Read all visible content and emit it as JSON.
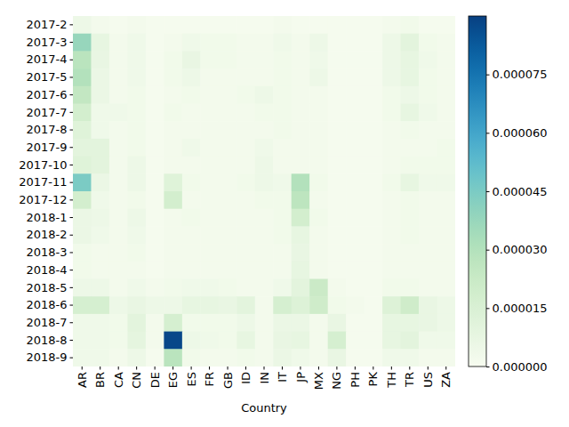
{
  "chart_data": {
    "type": "heatmap",
    "x_label": "Country",
    "x": [
      "AR",
      "BR",
      "CA",
      "CN",
      "DE",
      "EG",
      "ES",
      "FR",
      "GB",
      "ID",
      "IN",
      "IT",
      "JP",
      "MX",
      "NG",
      "PH",
      "PK",
      "TH",
      "TR",
      "US",
      "ZA"
    ],
    "y": [
      "2017-2",
      "2017-3",
      "2017-4",
      "2017-5",
      "2017-6",
      "2017-7",
      "2017-8",
      "2017-9",
      "2017-10",
      "2017-11",
      "2017-12",
      "2018-1",
      "2018-2",
      "2018-3",
      "2018-4",
      "2018-5",
      "2018-6",
      "2018-7",
      "2018-8",
      "2018-9"
    ],
    "color": "GnBu",
    "colorbar_range": [
      0,
      9e-05
    ],
    "colorbar_ticks": [
      {
        "value": 0,
        "label": "0.000000"
      },
      {
        "value": 1.5e-05,
        "label": "0.000015"
      },
      {
        "value": 3e-05,
        "label": "0.000030"
      },
      {
        "value": 4.5e-05,
        "label": "0.000045"
      },
      {
        "value": 6e-05,
        "label": "0.000060"
      },
      {
        "value": 7.5e-05,
        "label": "0.000075"
      }
    ],
    "values": [
      [
        5e-06,
        2e-06,
        1e-06,
        2e-06,
        1e-06,
        1e-06,
        1e-06,
        1e-06,
        1e-06,
        1e-06,
        1e-06,
        2e-06,
        1e-06,
        1e-06,
        1e-06,
        1e-06,
        1e-06,
        2e-06,
        3e-06,
        1e-06,
        1e-06
      ],
      [
        3.8e-05,
        8e-06,
        2e-06,
        4e-06,
        1e-06,
        2e-06,
        4e-06,
        3e-06,
        3e-06,
        2e-06,
        2e-06,
        4e-06,
        2e-06,
        5e-06,
        1e-06,
        1e-06,
        1e-06,
        5e-06,
        1e-05,
        3e-06,
        2e-06
      ],
      [
        2.8e-05,
        7e-06,
        2e-06,
        4e-06,
        1e-06,
        3e-06,
        7e-06,
        3e-06,
        3e-06,
        2e-06,
        2e-06,
        3e-06,
        2e-06,
        4e-06,
        1e-06,
        1e-06,
        1e-06,
        5e-06,
        8e-06,
        4e-06,
        2e-06
      ],
      [
        3e-05,
        6e-06,
        2e-06,
        4e-06,
        1e-06,
        3e-06,
        5e-06,
        2e-06,
        2e-06,
        2e-06,
        2e-06,
        3e-06,
        2e-06,
        5e-06,
        1e-06,
        1e-06,
        1e-06,
        5e-06,
        8e-06,
        3e-06,
        2e-06
      ],
      [
        2.5e-05,
        6e-06,
        2e-06,
        3e-06,
        1e-06,
        2e-06,
        3e-06,
        2e-06,
        2e-06,
        3e-06,
        5e-06,
        3e-06,
        2e-06,
        2e-06,
        1e-06,
        1e-06,
        1e-06,
        3e-06,
        5e-06,
        3e-06,
        2e-06
      ],
      [
        1.8e-05,
        4e-06,
        4e-06,
        3e-06,
        1e-06,
        3e-06,
        2e-06,
        2e-06,
        2e-06,
        2e-06,
        3e-06,
        3e-06,
        2e-06,
        2e-06,
        1e-06,
        1e-06,
        1e-06,
        3e-06,
        8e-06,
        4e-06,
        2e-06
      ],
      [
        1.2e-05,
        4e-06,
        2e-06,
        3e-06,
        1e-06,
        2e-06,
        2e-06,
        2e-06,
        2e-06,
        2e-06,
        2e-06,
        3e-06,
        2e-06,
        2e-06,
        1e-06,
        1e-06,
        1e-06,
        2e-06,
        3e-06,
        2e-06,
        2e-06
      ],
      [
        1e-05,
        1e-05,
        2e-06,
        3e-06,
        1e-06,
        2e-06,
        4e-06,
        2e-06,
        2e-06,
        2e-06,
        4e-06,
        2e-06,
        2e-06,
        2e-06,
        1e-06,
        1e-06,
        1e-06,
        2e-06,
        2e-06,
        2e-06,
        3e-06
      ],
      [
        1.2e-05,
        1e-05,
        2e-06,
        5e-06,
        1e-06,
        2e-06,
        2e-06,
        2e-06,
        2e-06,
        2e-06,
        5e-06,
        2e-06,
        2e-06,
        2e-06,
        1e-06,
        1e-06,
        1e-06,
        2e-06,
        3e-06,
        3e-06,
        3e-06
      ],
      [
        4.5e-05,
        6e-06,
        2e-06,
        5e-06,
        1e-06,
        1.2e-05,
        3e-06,
        2e-06,
        2e-06,
        3e-06,
        5e-06,
        4e-06,
        3e-05,
        3e-06,
        1e-06,
        1e-06,
        1e-06,
        3e-06,
        8e-06,
        4e-06,
        4e-06
      ],
      [
        1.8e-05,
        4e-06,
        2e-06,
        3e-06,
        1e-06,
        1.8e-05,
        2e-06,
        2e-06,
        2e-06,
        2e-06,
        3e-06,
        3e-06,
        2.7e-05,
        2e-06,
        1e-06,
        1e-06,
        1e-06,
        2e-06,
        3e-06,
        2e-06,
        2e-06
      ],
      [
        6e-06,
        5e-06,
        2e-06,
        5e-06,
        1e-06,
        2e-06,
        3e-06,
        2e-06,
        2e-06,
        2e-06,
        2e-06,
        3e-06,
        1.8e-05,
        3e-06,
        1e-06,
        1e-06,
        1e-06,
        2e-06,
        3e-06,
        2e-06,
        2e-06
      ],
      [
        6e-06,
        4e-06,
        2e-06,
        4e-06,
        1e-06,
        2e-06,
        2e-06,
        2e-06,
        2e-06,
        2e-06,
        2e-06,
        3e-06,
        8e-06,
        2e-06,
        1e-06,
        1e-06,
        1e-06,
        2e-06,
        3e-06,
        2e-06,
        2e-06
      ],
      [
        3e-06,
        2e-06,
        2e-06,
        3e-06,
        1e-06,
        2e-06,
        2e-06,
        2e-06,
        2e-06,
        2e-06,
        2e-06,
        2e-06,
        7e-06,
        2e-06,
        1e-06,
        1e-06,
        1e-06,
        2e-06,
        2e-06,
        2e-06,
        2e-06
      ],
      [
        3e-06,
        2e-06,
        2e-06,
        2e-06,
        1e-06,
        2e-06,
        2e-06,
        2e-06,
        2e-06,
        2e-06,
        2e-06,
        2e-06,
        8e-06,
        2e-06,
        1e-06,
        1e-06,
        1e-06,
        2e-06,
        2e-06,
        2e-06,
        2e-06
      ],
      [
        5e-06,
        5e-06,
        2e-06,
        4e-06,
        2e-06,
        3e-06,
        4e-06,
        4e-06,
        3e-06,
        2e-06,
        2e-06,
        4e-06,
        1e-05,
        2.2e-05,
        2e-06,
        1e-06,
        1e-06,
        3e-06,
        3e-06,
        2e-06,
        2e-06
      ],
      [
        1.7e-05,
        1.7e-05,
        5e-06,
        7e-06,
        5e-06,
        5e-06,
        8e-06,
        8e-06,
        7e-06,
        1e-05,
        2e-06,
        1.7e-05,
        1.3e-05,
        2e-05,
        3e-06,
        2e-06,
        1e-06,
        1.3e-05,
        2e-05,
        7e-06,
        5e-06
      ],
      [
        4e-06,
        4e-06,
        3e-06,
        1e-05,
        2e-06,
        1.7e-05,
        3e-06,
        3e-06,
        3e-06,
        5e-06,
        2e-06,
        6e-06,
        6e-06,
        2e-06,
        7e-06,
        1e-06,
        1e-06,
        8e-06,
        8e-06,
        7e-06,
        5e-06
      ],
      [
        4e-06,
        4e-06,
        3e-06,
        9e-06,
        2e-06,
        8.8e-05,
        5e-06,
        4e-06,
        3e-06,
        8e-06,
        2e-06,
        7e-06,
        8e-06,
        2e-06,
        1.7e-05,
        1e-06,
        1e-06,
        8e-06,
        1e-05,
        4e-06,
        4e-06
      ],
      [
        4e-06,
        4e-06,
        2e-06,
        5e-06,
        1e-06,
        2.8e-05,
        3e-06,
        2e-06,
        2e-06,
        3e-06,
        2e-06,
        6e-06,
        4e-06,
        2e-06,
        7e-06,
        1e-06,
        1e-06,
        4e-06,
        4e-06,
        2e-06,
        2e-06
      ]
    ]
  }
}
